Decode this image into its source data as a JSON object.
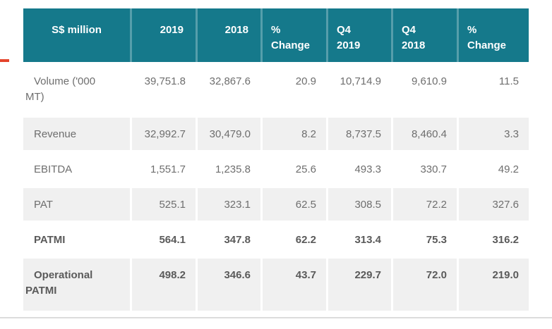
{
  "chart_data": {
    "type": "table",
    "columns": [
      "S$ million",
      "2019",
      "2018",
      "% Change",
      "Q4 2019",
      "Q4 2018",
      "% Change"
    ],
    "rows": [
      {
        "label": "Volume ('000 MT)",
        "values": [
          "39,751.8",
          "32,867.6",
          "20.9",
          "10,714.9",
          "9,610.9",
          "11.5"
        ],
        "bold": false
      },
      {
        "label": "Revenue",
        "values": [
          "32,992.7",
          "30,479.0",
          "8.2",
          "8,737.5",
          "8,460.4",
          "3.3"
        ],
        "bold": false
      },
      {
        "label": "EBITDA",
        "values": [
          "1,551.7",
          "1,235.8",
          "25.6",
          "493.3",
          "330.7",
          "49.2"
        ],
        "bold": false
      },
      {
        "label": "PAT",
        "values": [
          "525.1",
          "323.1",
          "62.5",
          "308.5",
          "72.2",
          "327.6"
        ],
        "bold": false
      },
      {
        "label": "PATMI",
        "values": [
          "564.1",
          "347.8",
          "62.2",
          "313.4",
          "75.3",
          "316.2"
        ],
        "bold": true
      },
      {
        "label": "Operational PATMI",
        "values": [
          "498.2",
          "346.6",
          "43.7",
          "229.7",
          "72.0",
          "219.0"
        ],
        "bold": true
      }
    ]
  },
  "header_display": [
    "S$ million",
    "2019",
    "2018",
    "%\nChange",
    "Q4\n2019",
    "Q4\n2018",
    "%\nChange"
  ],
  "label_display": [
    "Volume ('000\nMT)",
    "Revenue",
    "EBITDA",
    "PAT",
    "PATMI",
    "Operational\nPATMI"
  ],
  "colors": {
    "header_bg": "#15798b",
    "header_text": "#ffffff",
    "stripe": "#f0f0f0",
    "text": "#6e6e6e",
    "bold_text": "#5a5a5a",
    "divider": "#dcdcdc",
    "marker_red": "#e4442c"
  }
}
